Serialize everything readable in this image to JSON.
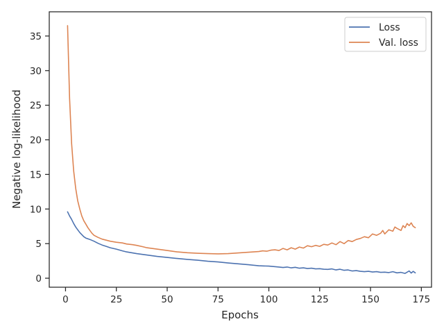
{
  "chart_data": {
    "type": "line",
    "title": "",
    "xlabel": "Epochs",
    "ylabel": "Negative log-likelihood",
    "xlim": [
      -8,
      180
    ],
    "ylim": [
      -1.3,
      38.5
    ],
    "xticks": [
      0,
      25,
      50,
      75,
      100,
      125,
      150,
      175
    ],
    "yticks": [
      0,
      5,
      10,
      15,
      20,
      25,
      30,
      35
    ],
    "grid": false,
    "legend_position": "top-right",
    "series": [
      {
        "name": "Loss",
        "color": "#4c72b0",
        "x": [
          1,
          2,
          3,
          4,
          5,
          6,
          7,
          8,
          9,
          10,
          12,
          14,
          16,
          18,
          20,
          22,
          25,
          28,
          30,
          35,
          40,
          45,
          50,
          55,
          60,
          65,
          70,
          75,
          80,
          85,
          90,
          95,
          100,
          105,
          107,
          109,
          111,
          113,
          115,
          117,
          119,
          121,
          123,
          125,
          127,
          129,
          131,
          133,
          135,
          137,
          139,
          141,
          143,
          145,
          147,
          149,
          151,
          153,
          155,
          157,
          159,
          161,
          163,
          165,
          167,
          169,
          170,
          171,
          172
        ],
        "y": [
          9.6,
          9.0,
          8.5,
          7.9,
          7.4,
          7.0,
          6.6,
          6.3,
          6.0,
          5.8,
          5.6,
          5.35,
          5.05,
          4.8,
          4.6,
          4.4,
          4.2,
          3.95,
          3.8,
          3.55,
          3.35,
          3.15,
          3.0,
          2.85,
          2.72,
          2.6,
          2.45,
          2.35,
          2.2,
          2.08,
          1.95,
          1.8,
          1.75,
          1.62,
          1.55,
          1.62,
          1.5,
          1.58,
          1.45,
          1.5,
          1.4,
          1.45,
          1.35,
          1.38,
          1.3,
          1.28,
          1.35,
          1.2,
          1.3,
          1.15,
          1.2,
          1.05,
          1.1,
          1.0,
          0.95,
          1.0,
          0.9,
          0.95,
          0.85,
          0.88,
          0.82,
          0.95,
          0.78,
          0.85,
          0.7,
          1.05,
          0.75,
          1.0,
          0.78
        ]
      },
      {
        "name": "Val. loss",
        "color": "#dd8452",
        "x": [
          1,
          2,
          3,
          4,
          5,
          6,
          7,
          8,
          9,
          10,
          11,
          12,
          13,
          14,
          16,
          18,
          20,
          22,
          25,
          28,
          30,
          33,
          35,
          38,
          40,
          45,
          50,
          55,
          60,
          65,
          70,
          75,
          80,
          85,
          90,
          95,
          97,
          99,
          101,
          103,
          105,
          107,
          109,
          111,
          113,
          115,
          117,
          119,
          121,
          123,
          125,
          127,
          129,
          131,
          133,
          135,
          137,
          139,
          141,
          143,
          145,
          147,
          149,
          151,
          153,
          155,
          156,
          157,
          159,
          161,
          162,
          163,
          165,
          166,
          167,
          168,
          169,
          170,
          171,
          172
        ],
        "y": [
          36.5,
          26.0,
          19.5,
          15.5,
          13.0,
          11.2,
          10.0,
          9.0,
          8.3,
          7.8,
          7.3,
          6.9,
          6.5,
          6.2,
          5.9,
          5.65,
          5.5,
          5.35,
          5.2,
          5.1,
          4.95,
          4.85,
          4.75,
          4.55,
          4.4,
          4.2,
          4.0,
          3.8,
          3.68,
          3.6,
          3.55,
          3.52,
          3.55,
          3.65,
          3.75,
          3.85,
          3.95,
          3.9,
          4.05,
          4.1,
          4.0,
          4.3,
          4.1,
          4.4,
          4.2,
          4.5,
          4.35,
          4.7,
          4.55,
          4.75,
          4.6,
          4.9,
          4.8,
          5.1,
          4.85,
          5.3,
          5.0,
          5.45,
          5.3,
          5.6,
          5.75,
          6.0,
          5.85,
          6.4,
          6.2,
          6.5,
          6.9,
          6.4,
          7.0,
          6.8,
          7.4,
          7.2,
          6.9,
          7.6,
          7.3,
          7.9,
          7.6,
          8.0,
          7.5,
          7.3
        ]
      }
    ]
  }
}
